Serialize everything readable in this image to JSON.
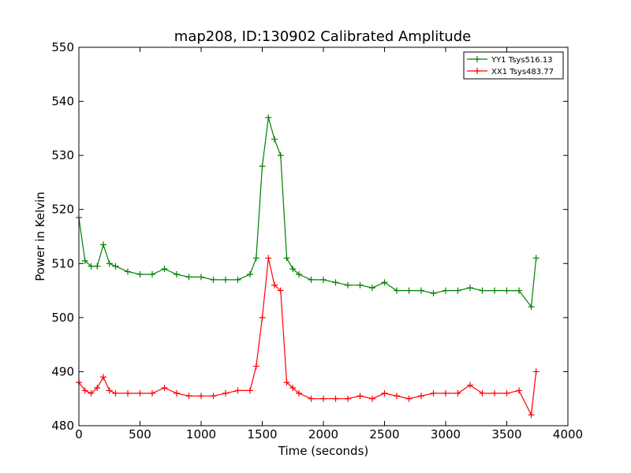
{
  "chart_data": {
    "type": "line",
    "title": "map208, ID:130902 Calibrated Amplitude",
    "xlabel": "Time (seconds)",
    "ylabel": "Power in Kelvin",
    "xlim": [
      0,
      4000
    ],
    "ylim": [
      480,
      550
    ],
    "xticks": [
      0,
      500,
      1000,
      1500,
      2000,
      2500,
      3000,
      3500,
      4000
    ],
    "yticks": [
      480,
      490,
      500,
      510,
      520,
      530,
      540,
      550
    ],
    "grid": false,
    "legend_position": "top-right",
    "marker": "+",
    "series": [
      {
        "name": "YY1 Tsys516.13",
        "color": "#008000",
        "x": [
          0,
          50,
          100,
          150,
          200,
          250,
          300,
          400,
          500,
          600,
          700,
          800,
          900,
          1000,
          1100,
          1200,
          1300,
          1400,
          1450,
          1500,
          1550,
          1600,
          1650,
          1700,
          1750,
          1800,
          1900,
          2000,
          2100,
          2200,
          2300,
          2400,
          2500,
          2600,
          2700,
          2800,
          2900,
          3000,
          3100,
          3200,
          3300,
          3400,
          3500,
          3600,
          3700,
          3740
        ],
        "y": [
          518.5,
          510.5,
          509.5,
          509.5,
          513.5,
          510,
          509.5,
          508.5,
          508,
          508,
          509,
          508,
          507.5,
          507.5,
          507,
          507,
          507,
          508,
          511,
          528,
          537,
          533,
          530,
          511,
          509,
          508,
          507,
          507,
          506.5,
          506,
          506,
          505.5,
          506.5,
          505,
          505,
          505,
          504.5,
          505,
          505,
          505.5,
          505,
          505,
          505,
          505,
          502,
          511
        ]
      },
      {
        "name": "XX1 Tsys483.77",
        "color": "#ff0000",
        "x": [
          0,
          50,
          100,
          150,
          200,
          250,
          300,
          400,
          500,
          600,
          700,
          800,
          900,
          1000,
          1100,
          1200,
          1300,
          1400,
          1450,
          1500,
          1550,
          1600,
          1650,
          1700,
          1750,
          1800,
          1900,
          2000,
          2100,
          2200,
          2300,
          2400,
          2500,
          2600,
          2700,
          2800,
          2900,
          3000,
          3100,
          3200,
          3300,
          3400,
          3500,
          3600,
          3700,
          3740
        ],
        "y": [
          488,
          486.5,
          486,
          487,
          489,
          486.5,
          486,
          486,
          486,
          486,
          487,
          486,
          485.5,
          485.5,
          485.5,
          486,
          486.5,
          486.5,
          491,
          500,
          511,
          506,
          505,
          488,
          487,
          486,
          485,
          485,
          485,
          485,
          485.5,
          485,
          486,
          485.5,
          485,
          485.5,
          486,
          486,
          486,
          487.5,
          486,
          486,
          486,
          486.5,
          482,
          490
        ]
      }
    ]
  }
}
